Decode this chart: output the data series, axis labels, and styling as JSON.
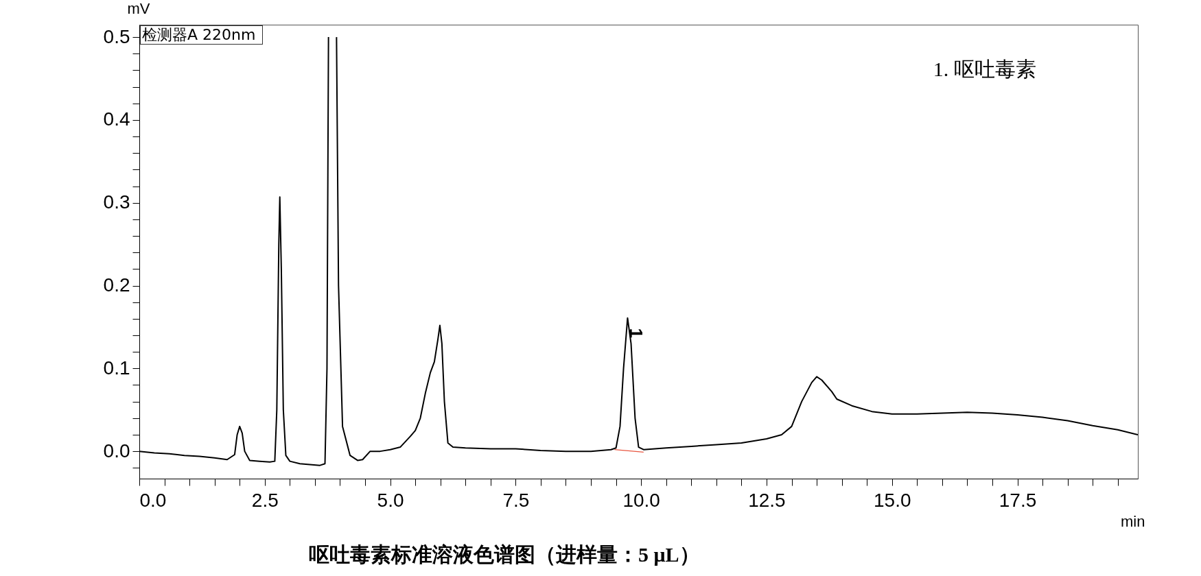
{
  "chart_data": {
    "type": "line",
    "title": "呕吐毒素标准溶液色谱图（进样量：5 μL）",
    "xlabel": "min",
    "ylabel": "mV",
    "x": [
      0,
      0.3,
      0.6,
      0.9,
      1.2,
      1.5,
      1.75,
      1.9,
      1.95,
      2.0,
      2.05,
      2.1,
      2.2,
      2.4,
      2.6,
      2.7,
      2.74,
      2.78,
      2.8,
      2.83,
      2.87,
      2.92,
      3.0,
      3.2,
      3.4,
      3.6,
      3.7,
      3.74,
      3.77,
      3.8,
      3.9,
      3.93,
      3.97,
      4.05,
      4.2,
      4.35,
      4.45,
      4.6,
      4.8,
      5.0,
      5.2,
      5.4,
      5.5,
      5.6,
      5.7,
      5.8,
      5.88,
      5.95,
      5.99,
      6.03,
      6.08,
      6.15,
      6.25,
      6.5,
      7.0,
      7.5,
      8.0,
      8.5,
      9.0,
      9.4,
      9.5,
      9.58,
      9.65,
      9.73,
      9.8,
      9.88,
      9.95,
      10.05,
      10.5,
      11.0,
      11.5,
      12.0,
      12.5,
      12.8,
      13.0,
      13.2,
      13.4,
      13.5,
      13.6,
      13.8,
      13.9,
      14.2,
      14.6,
      15.0,
      15.5,
      16.0,
      16.5,
      17.0,
      17.5,
      18.0,
      18.5,
      19.0,
      19.5,
      19.9
    ],
    "series": [
      {
        "color": "#000000",
        "values": [
          0,
          -0.002,
          -0.003,
          -0.005,
          -0.006,
          -0.008,
          -0.01,
          -0.004,
          0.02,
          0.03,
          0.022,
          0,
          -0.011,
          -0.012,
          -0.013,
          -0.012,
          0.05,
          0.25,
          0.307,
          0.22,
          0.05,
          -0.005,
          -0.012,
          -0.015,
          -0.016,
          -0.017,
          -0.015,
          0.1,
          0.5,
          null,
          null,
          0.5,
          0.2,
          0.03,
          -0.005,
          -0.011,
          -0.01,
          0,
          0,
          0.002,
          0.005,
          0.018,
          0.025,
          0.04,
          0.07,
          0.095,
          0.108,
          0.135,
          0.152,
          0.13,
          0.06,
          0.01,
          0.005,
          0.004,
          0.003,
          0.003,
          0.001,
          0,
          0,
          0.002,
          0.004,
          0.03,
          0.1,
          0.161,
          0.13,
          0.04,
          0.005,
          0.002,
          0.004,
          0.006,
          0.008,
          0.01,
          0.015,
          0.02,
          0.03,
          0.06,
          0.083,
          0.09,
          0.086,
          0.072,
          0.063,
          0.055,
          0.048,
          0.045,
          0.045,
          0.046,
          0.047,
          0.046,
          0.044,
          0.041,
          0.037,
          0.031,
          0.026,
          0.02
        ]
      },
      {
        "color": "#e8553f",
        "x": [
          9.47,
          10.05
        ],
        "values": [
          0.002,
          -0.001
        ]
      }
    ],
    "xlim": [
      0,
      19.9
    ],
    "ylim": [
      -0.033,
      0.515
    ],
    "xticks": [
      {
        "value": 0,
        "label": "0.0"
      },
      {
        "value": 0.5,
        "label": null
      },
      {
        "value": 1,
        "label": null
      },
      {
        "value": 1.5,
        "label": null
      },
      {
        "value": 2,
        "label": null
      },
      {
        "value": 2.5,
        "label": "2.5"
      },
      {
        "value": 3,
        "label": null
      },
      {
        "value": 3.5,
        "label": null
      },
      {
        "value": 4,
        "label": null
      },
      {
        "value": 4.5,
        "label": null
      },
      {
        "value": 5,
        "label": "5.0"
      },
      {
        "value": 5.5,
        "label": null
      },
      {
        "value": 6,
        "label": null
      },
      {
        "value": 6.5,
        "label": null
      },
      {
        "value": 7,
        "label": null
      },
      {
        "value": 7.5,
        "label": "7.5"
      },
      {
        "value": 8,
        "label": null
      },
      {
        "value": 8.5,
        "label": null
      },
      {
        "value": 9,
        "label": null
      },
      {
        "value": 9.5,
        "label": null
      },
      {
        "value": 10,
        "label": "10.0"
      },
      {
        "value": 10.5,
        "label": null
      },
      {
        "value": 11,
        "label": null
      },
      {
        "value": 11.5,
        "label": null
      },
      {
        "value": 12,
        "label": null
      },
      {
        "value": 12.5,
        "label": "12.5"
      },
      {
        "value": 13,
        "label": null
      },
      {
        "value": 13.5,
        "label": null
      },
      {
        "value": 14,
        "label": null
      },
      {
        "value": 14.5,
        "label": null
      },
      {
        "value": 15,
        "label": "15.0"
      },
      {
        "value": 15.5,
        "label": null
      },
      {
        "value": 16,
        "label": null
      },
      {
        "value": 16.5,
        "label": null
      },
      {
        "value": 17,
        "label": null
      },
      {
        "value": 17.5,
        "label": "17.5"
      },
      {
        "value": 18,
        "label": null
      },
      {
        "value": 18.5,
        "label": null
      },
      {
        "value": 19,
        "label": null
      },
      {
        "value": 19.5,
        "label": null
      }
    ],
    "yticks": [
      {
        "value": -0.02,
        "label": null
      },
      {
        "value": 0,
        "label": "0.0"
      },
      {
        "value": 0.02,
        "label": null
      },
      {
        "value": 0.04,
        "label": null
      },
      {
        "value": 0.06,
        "label": null
      },
      {
        "value": 0.08,
        "label": null
      },
      {
        "value": 0.1,
        "label": "0.1"
      },
      {
        "value": 0.12,
        "label": null
      },
      {
        "value": 0.14,
        "label": null
      },
      {
        "value": 0.16,
        "label": null
      },
      {
        "value": 0.18,
        "label": null
      },
      {
        "value": 0.2,
        "label": "0.2"
      },
      {
        "value": 0.22,
        "label": null
      },
      {
        "value": 0.24,
        "label": null
      },
      {
        "value": 0.26,
        "label": null
      },
      {
        "value": 0.28,
        "label": null
      },
      {
        "value": 0.3,
        "label": "0.3"
      },
      {
        "value": 0.32,
        "label": null
      },
      {
        "value": 0.34,
        "label": null
      },
      {
        "value": 0.36,
        "label": null
      },
      {
        "value": 0.38,
        "label": null
      },
      {
        "value": 0.4,
        "label": "0.4"
      },
      {
        "value": 0.42,
        "label": null
      },
      {
        "value": 0.44,
        "label": null
      },
      {
        "value": 0.46,
        "label": null
      },
      {
        "value": 0.48,
        "label": null
      },
      {
        "value": 0.5,
        "label": "0.5"
      }
    ],
    "annotations": [
      "检测器A 220nm",
      "1. 呕吐毒素",
      {
        "text": "1",
        "x": 9.73,
        "y": 0.161
      }
    ]
  }
}
